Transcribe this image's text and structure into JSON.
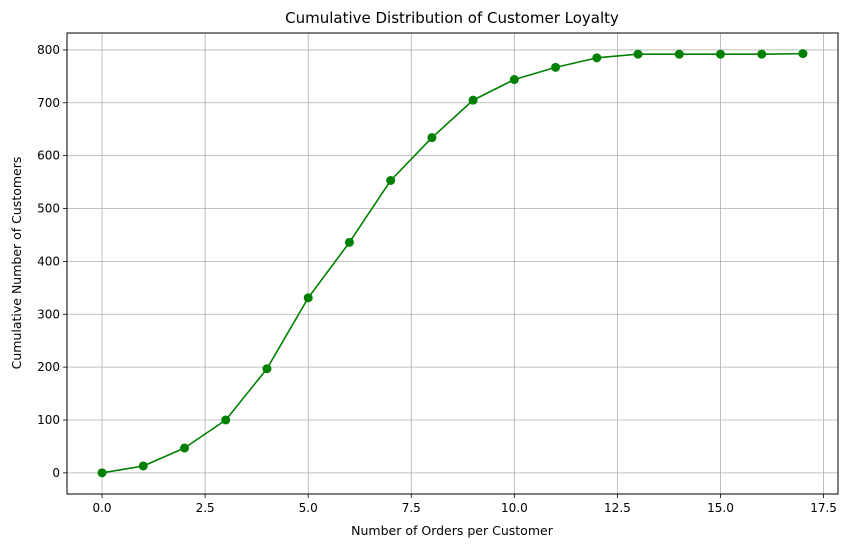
{
  "chart_data": {
    "type": "line",
    "title": "Cumulative Distribution of Customer Loyalty",
    "xlabel": "Number of Orders per Customer",
    "ylabel": "Cumulative Number of Customers",
    "xlim": [
      -0.85,
      17.85
    ],
    "ylim": [
      -40,
      832
    ],
    "x_ticks": [
      0.0,
      2.5,
      5.0,
      7.5,
      10.0,
      12.5,
      15.0,
      17.5
    ],
    "x_tick_labels": [
      "0.0",
      "2.5",
      "5.0",
      "7.5",
      "10.0",
      "12.5",
      "15.0",
      "17.5"
    ],
    "y_ticks": [
      0,
      100,
      200,
      300,
      400,
      500,
      600,
      700,
      800
    ],
    "y_tick_labels": [
      "0",
      "100",
      "200",
      "300",
      "400",
      "500",
      "600",
      "700",
      "800"
    ],
    "grid": true,
    "series": [
      {
        "color": "#008000",
        "marker": "circle",
        "x": [
          0,
          1,
          2,
          3,
          4,
          5,
          6,
          7,
          8,
          9,
          10,
          11,
          12,
          13,
          14,
          15,
          16,
          17
        ],
        "y": [
          0,
          13,
          47,
          100,
          197,
          331,
          436,
          553,
          634,
          705,
          744,
          767,
          785,
          792,
          792,
          792,
          792,
          793
        ]
      }
    ]
  }
}
